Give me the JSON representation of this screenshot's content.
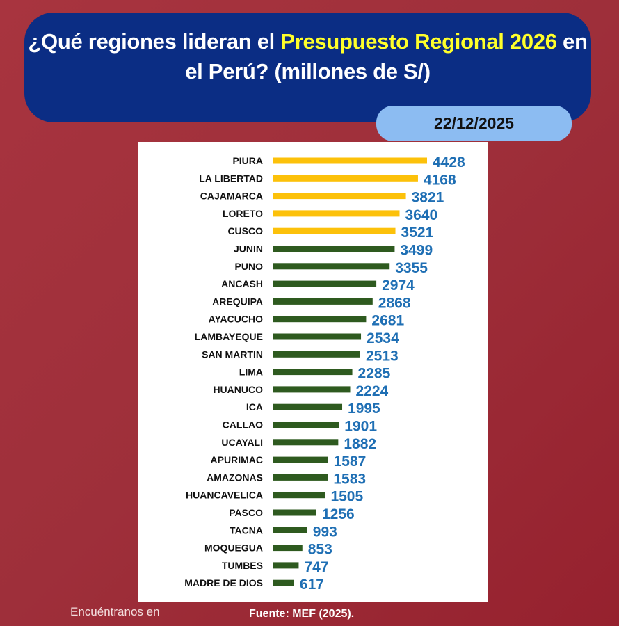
{
  "header": {
    "title_part1": "¿Qué regiones lideran el ",
    "title_highlight1": "Presupuesto Regional 2026",
    "title_part2": " en el Perú? (millones de S/)",
    "date": "22/12/2025"
  },
  "footer": {
    "find_us": "Encuéntranos en",
    "source": "Fuente: MEF (2025)."
  },
  "colors": {
    "top5": "#fcc10a",
    "rest": "#2e5a1f",
    "value_label": "#1f6fb4"
  },
  "chart_data": {
    "type": "bar",
    "orientation": "horizontal",
    "title": "¿Qué regiones lideran el Presupuesto Regional 2026 en el Perú? (millones de S/)",
    "xlabel": "",
    "ylabel": "",
    "unit": "millones de S/",
    "grid": false,
    "highlight_top_n": 5,
    "categories": [
      "PIURA",
      "LA LIBERTAD",
      "CAJAMARCA",
      "LORETO",
      "CUSCO",
      "JUNIN",
      "PUNO",
      "ANCASH",
      "AREQUIPA",
      "AYACUCHO",
      "LAMBAYEQUE",
      "SAN MARTIN",
      "LIMA",
      "HUANUCO",
      "ICA",
      "CALLAO",
      "UCAYALI",
      "APURIMAC",
      "AMAZONAS",
      "HUANCAVELICA",
      "PASCO",
      "TACNA",
      "MOQUEGUA",
      "TUMBES",
      "MADRE DE DIOS"
    ],
    "values": [
      4428,
      4168,
      3821,
      3640,
      3521,
      3499,
      3355,
      2974,
      2868,
      2681,
      2534,
      2513,
      2285,
      2224,
      1995,
      1901,
      1882,
      1587,
      1583,
      1505,
      1256,
      993,
      853,
      747,
      617
    ]
  }
}
